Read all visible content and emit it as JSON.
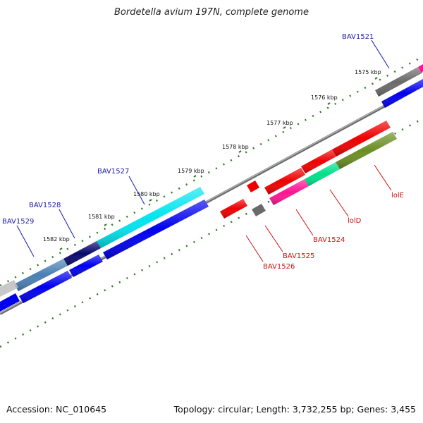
{
  "title": "Bordetella avium 197N, complete genome",
  "footer": {
    "accession": "Accession: NC_010645",
    "summary": "Topology: circular; Length: 3,732,255 bp; Genes: 3,455"
  },
  "colors": {
    "backbone": "#8c8c8c",
    "tick": "#2a7a1e",
    "label_forward": "#1a1aa8",
    "label_reverse": "#cc1111"
  },
  "scale_labels": [
    "1575 kbp",
    "1576 kbp",
    "1577 kbp",
    "1578 kbp",
    "1579 kbp",
    "1580 kbp",
    "1581 kbp",
    "1582 kbp"
  ],
  "genes": [
    {
      "label": "BAV1521",
      "strand": "forward"
    },
    {
      "label": "BAV1527",
      "strand": "forward"
    },
    {
      "label": "BAV1528",
      "strand": "forward"
    },
    {
      "label": "BAV1529",
      "strand": "forward"
    },
    {
      "label": "lolE",
      "strand": "reverse"
    },
    {
      "label": "lolD",
      "strand": "reverse"
    },
    {
      "label": "BAV1524",
      "strand": "reverse"
    },
    {
      "label": "BAV1525",
      "strand": "reverse"
    },
    {
      "label": "BAV1526",
      "strand": "reverse"
    }
  ]
}
